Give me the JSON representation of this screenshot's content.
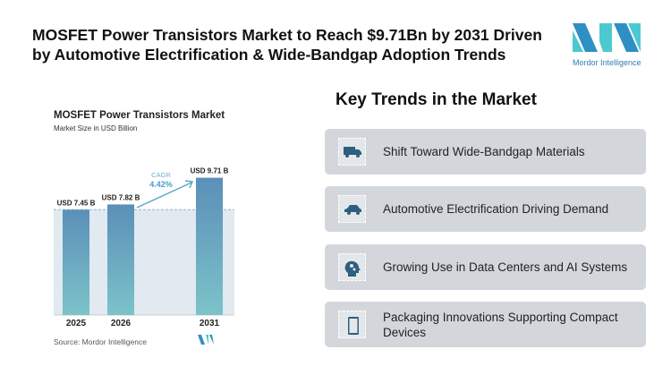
{
  "title": "MOSFET Power Transistors Market to Reach $9.71Bn by 2031 Driven by Automotive Electrification & Wide-Bandgap Adoption Trends",
  "logo": {
    "text": "Mordor Intelligence"
  },
  "chart_data": {
    "type": "bar",
    "title": "MOSFET Power Transistors Market",
    "subtitle": "Market Size in USD Billion",
    "categories": [
      "2025",
      "2026",
      "2031"
    ],
    "values": [
      7.45,
      7.82,
      9.71
    ],
    "data_labels": [
      "USD 7.45 B",
      "USD 7.82 B",
      "USD 9.71 B"
    ],
    "annotation": {
      "label": "CAGR",
      "value": "4.42%"
    },
    "ylim": [
      0,
      10
    ],
    "grid": false,
    "colors": {
      "bar_top": "#5b8fb8",
      "bar_bottom": "#7cc3c9",
      "shade": "#e1e9f1"
    },
    "source": "Source: Mordor Intelligence"
  },
  "trends": {
    "heading": "Key Trends in the Market",
    "items": [
      {
        "label": "Shift Toward Wide-Bandgap Materials",
        "icon": "truck-icon"
      },
      {
        "label": "Automotive Electrification Driving Demand",
        "icon": "car-icon"
      },
      {
        "label": "Growing Use in Data Centers and AI Systems",
        "icon": "head-gears-icon"
      },
      {
        "label": "Packaging Innovations Supporting Compact Devices",
        "icon": "smartphone-icon"
      }
    ]
  },
  "colors": {
    "icon": "#2d5f7e",
    "card": "#d3d7dc"
  }
}
